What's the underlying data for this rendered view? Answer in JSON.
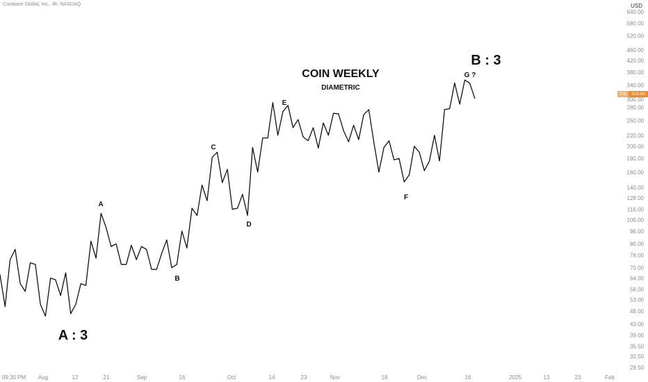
{
  "header": {
    "symbol": "Coinbase Global, Inc., 4h, NASDAQ",
    "currency": "USD"
  },
  "price_tag": {
    "label": "Pre",
    "value": "318.80",
    "color": "#f08a24"
  },
  "chart_data": {
    "type": "line",
    "title": "COIN WEEKLY",
    "subtitle": "DIAMETRIC",
    "y_scale": "log",
    "ylim": [
      29,
      660
    ],
    "y_ticks": [
      "640.00",
      "580.00",
      "520.00",
      "460.00",
      "420.00",
      "380.00",
      "340.00",
      "300.00",
      "280.00",
      "250.00",
      "220.00",
      "200.00",
      "180.00",
      "160.00",
      "140.00",
      "128.00",
      "116.00",
      "106.00",
      "96.00",
      "86.00",
      "78.00",
      "70.00",
      "64.00",
      "58.00",
      "53.00",
      "48.00",
      "43.00",
      "39.00",
      "35.50",
      "32.50",
      "29.50"
    ],
    "x_ticks": [
      "09:30 PM",
      "Aug",
      "12",
      "21",
      "Sep",
      "16",
      "Oct",
      "14",
      "23",
      "Nov",
      "18",
      "Dec",
      "16",
      "2025",
      "13",
      "23",
      "Feb"
    ],
    "series": [
      {
        "color": "#111111",
        "values": [
          66,
          50,
          75,
          82,
          61,
          57,
          73,
          72,
          51,
          46,
          64,
          63,
          55,
          67,
          47,
          51,
          61,
          60,
          88,
          76,
          112,
          99,
          84,
          86,
          72,
          72,
          85,
          75,
          84,
          82,
          69,
          69,
          79,
          89,
          70,
          72,
          96,
          83,
          117,
          110,
          143,
          125,
          182,
          190,
          146,
          164,
          116,
          117,
          132,
          110,
          198,
          160,
          215,
          215,
          292,
          220,
          270,
          285,
          235,
          252,
          217,
          210,
          235,
          197,
          245,
          220,
          266,
          265,
          229,
          208,
          240,
          212,
          263,
          275,
          207,
          160,
          198,
          210,
          178,
          180,
          147,
          156,
          200,
          190,
          162,
          176,
          220,
          176,
          275,
          277,
          346,
          288,
          355,
          345,
          302
        ],
        "start_index": 0
      }
    ],
    "annotations": [
      {
        "text": "A : 3"
      },
      {
        "text": "A"
      },
      {
        "text": "B"
      },
      {
        "text": "C"
      },
      {
        "text": "D"
      },
      {
        "text": "E"
      },
      {
        "text": "F"
      },
      {
        "text": "G ?"
      },
      {
        "text": "B : 3"
      }
    ],
    "grid": false,
    "legend": "none"
  }
}
